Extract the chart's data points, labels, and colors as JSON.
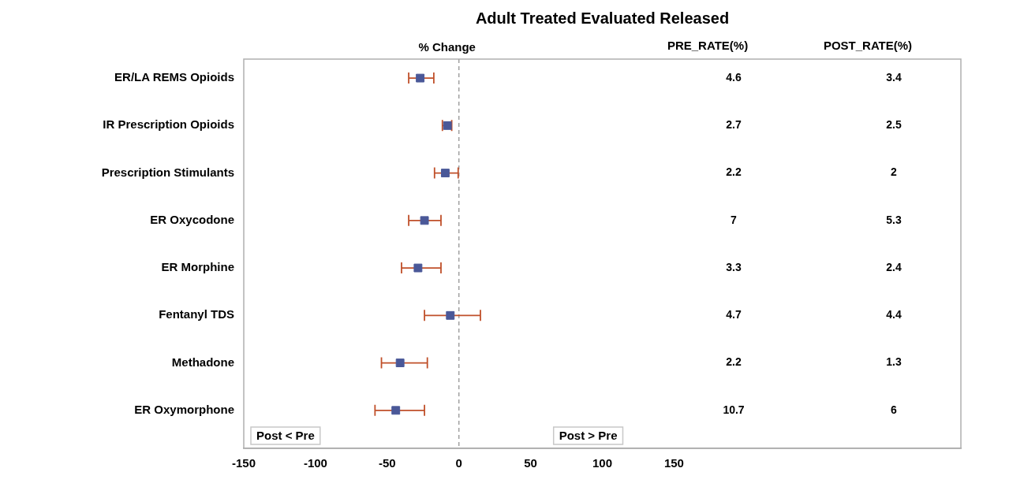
{
  "chart_data": {
    "type": "scatter",
    "orientation": "horizontal",
    "title": "Adult Treated Evaluated Released",
    "xlabel": "% Change",
    "categories": [
      "ER/LA REMS Opioids",
      "IR Prescription Opioids",
      "Prescription Stimulants",
      "ER Oxycodone",
      "ER Morphine",
      "Fentanyl TDS",
      "Methadone",
      "ER Oxymorphone"
    ],
    "series": [
      {
        "color": "#4a5898",
        "values": [
          -27,
          -8,
          -9.5,
          -24,
          -28.5,
          -6,
          -41,
          -44
        ],
        "errors": [
          [
            -35,
            -17.5
          ],
          [
            -11.5,
            -5
          ],
          [
            -17,
            -0.5
          ],
          [
            -35,
            -12.5
          ],
          [
            -40,
            -12.5
          ],
          [
            -24,
            15
          ],
          [
            -54,
            -22
          ],
          [
            -58.5,
            -24
          ]
        ]
      }
    ],
    "marker": "square",
    "xlim": [
      -150,
      350
    ],
    "xticks": [
      -150,
      -100,
      -50,
      0,
      50,
      100,
      150
    ],
    "grid": false,
    "legend": false,
    "ref_lines": [
      {
        "axis": "x",
        "value": 0,
        "color": "#a0a0a0",
        "line_style": "dashed"
      }
    ],
    "annotations": [
      "PRE_RATE(%)",
      "POST_RATE(%)",
      "4.6",
      "3.4",
      "2.7",
      "2.5",
      "2.2",
      "2",
      "7",
      "5.3",
      "3.3",
      "2.4",
      "4.7",
      "4.4",
      "2.2",
      "1.3",
      "10.7",
      "6",
      "Post < Pre",
      "Post > Pre"
    ]
  }
}
